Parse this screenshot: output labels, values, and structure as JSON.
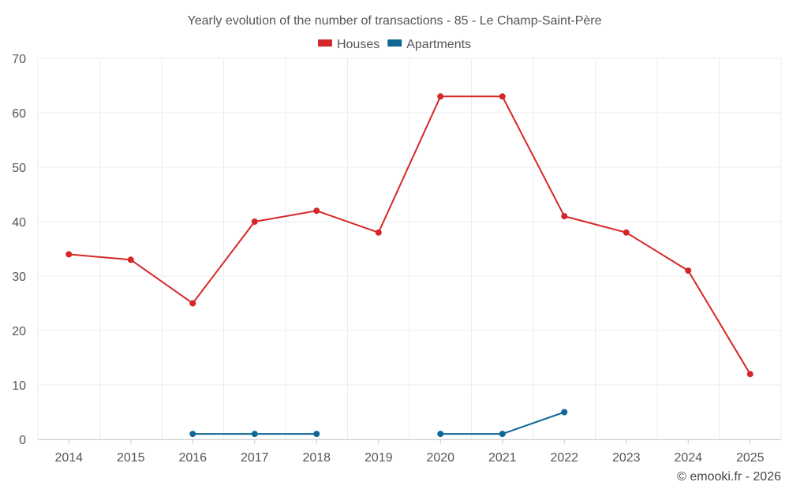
{
  "chart_data": {
    "type": "line",
    "title": "Yearly evolution of the number of transactions - 85 - Le Champ-Saint-Père",
    "categories": [
      "2014",
      "2015",
      "2016",
      "2017",
      "2018",
      "2019",
      "2020",
      "2021",
      "2022",
      "2023",
      "2024",
      "2025"
    ],
    "ylim": [
      0,
      70
    ],
    "yticks": [
      0,
      10,
      20,
      30,
      40,
      50,
      60,
      70
    ],
    "grid": true,
    "legend_position": "top-center",
    "series": [
      {
        "name": "Houses",
        "color": "#d62728",
        "values": [
          34,
          33,
          25,
          40,
          42,
          38,
          63,
          63,
          41,
          38,
          31,
          12
        ]
      },
      {
        "name": "Apartments",
        "color": "#0f6796",
        "values": [
          null,
          null,
          1,
          1,
          1,
          null,
          1,
          1,
          5,
          null,
          null,
          null
        ]
      }
    ],
    "credit": "© emooki.fr - 2026"
  }
}
